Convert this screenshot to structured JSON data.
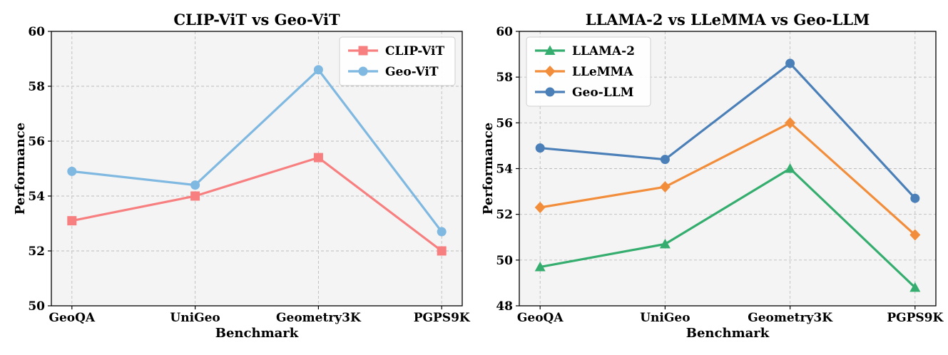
{
  "chart_data": [
    {
      "type": "line",
      "title": "CLIP-ViT vs Geo-ViT",
      "xlabel": "Benchmark",
      "ylabel": "Performance",
      "categories": [
        "GeoQA",
        "UniGeo",
        "Geometry3K",
        "PGPS9K"
      ],
      "ylim": [
        50,
        60
      ],
      "yticks": [
        50,
        52,
        54,
        56,
        58,
        60
      ],
      "grid": true,
      "legend_position": "top-right",
      "series": [
        {
          "name": "CLIP-ViT",
          "values": [
            53.1,
            54.0,
            55.4,
            52.0
          ],
          "color": "#f77f7f",
          "marker": "square"
        },
        {
          "name": "Geo-ViT",
          "values": [
            54.9,
            54.4,
            58.6,
            52.7
          ],
          "color": "#7fb8e0",
          "marker": "circle"
        }
      ]
    },
    {
      "type": "line",
      "title": "LLAMA-2 vs LLeMMA vs Geo-LLM",
      "xlabel": "Benchmark",
      "ylabel": "Performance",
      "categories": [
        "GeoQA",
        "UniGeo",
        "Geometry3K",
        "PGPS9K"
      ],
      "ylim": [
        48,
        60
      ],
      "yticks": [
        48,
        50,
        52,
        54,
        56,
        58,
        60
      ],
      "grid": true,
      "legend_position": "top-left",
      "series": [
        {
          "name": "LLAMA-2",
          "values": [
            49.7,
            50.7,
            54.0,
            48.8
          ],
          "color": "#35ad6e",
          "marker": "triangle"
        },
        {
          "name": "LLeMMA",
          "values": [
            52.3,
            53.2,
            56.0,
            51.1
          ],
          "color": "#f28e3b",
          "marker": "diamond"
        },
        {
          "name": "Geo-LLM",
          "values": [
            54.9,
            54.4,
            58.6,
            52.7
          ],
          "color": "#4a7fb8",
          "marker": "circle"
        }
      ]
    }
  ]
}
